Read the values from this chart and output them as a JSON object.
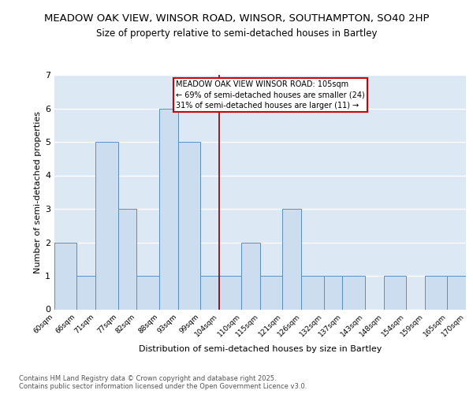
{
  "title": "MEADOW OAK VIEW, WINSOR ROAD, WINSOR, SOUTHAMPTON, SO40 2HP",
  "subtitle": "Size of property relative to semi-detached houses in Bartley",
  "xlabel": "Distribution of semi-detached houses by size in Bartley",
  "ylabel": "Number of semi-detached properties",
  "bin_edges": [
    60,
    66,
    71,
    77,
    82,
    88,
    93,
    99,
    104,
    110,
    115,
    121,
    126,
    132,
    137,
    143,
    148,
    154,
    159,
    165,
    170
  ],
  "bar_heights": [
    2,
    1,
    5,
    3,
    1,
    6,
    5,
    1,
    1,
    2,
    1,
    3,
    1,
    1,
    1,
    0,
    1,
    0,
    1,
    1
  ],
  "bar_color": "#ccddf0",
  "bar_edge_color": "#5b8ec4",
  "property_line_x": 104,
  "annotation_text": "MEADOW OAK VIEW WINSOR ROAD: 105sqm\n← 69% of semi-detached houses are smaller (24)\n31% of semi-detached houses are larger (11) →",
  "annotation_box_color": "#ffffff",
  "annotation_box_edge": "#cc0000",
  "vline_color": "#8b0000",
  "background_color": "#dde8f5",
  "grid_color": "#ffffff",
  "ylim": [
    0,
    7
  ],
  "yticks": [
    0,
    1,
    2,
    3,
    4,
    5,
    6,
    7
  ],
  "footnote": "Contains HM Land Registry data © Crown copyright and database right 2025.\nContains public sector information licensed under the Open Government Licence v3.0.",
  "title_fontsize": 9.5,
  "subtitle_fontsize": 8.5,
  "axis_label_fontsize": 8,
  "tick_fontsize": 6.5,
  "annotation_fontsize": 7,
  "footnote_fontsize": 6
}
